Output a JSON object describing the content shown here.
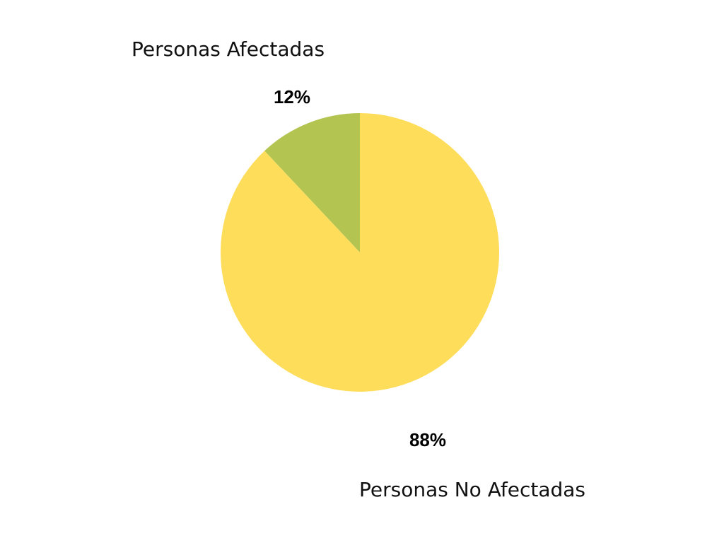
{
  "chart_data": {
    "type": "pie",
    "categories": [
      "Personas Afectadas",
      "Personas No Afectadas"
    ],
    "values": [
      12,
      88
    ],
    "value_labels": [
      "12%",
      "88%"
    ],
    "colors": [
      "#b3c451",
      "#fedd5b"
    ]
  }
}
